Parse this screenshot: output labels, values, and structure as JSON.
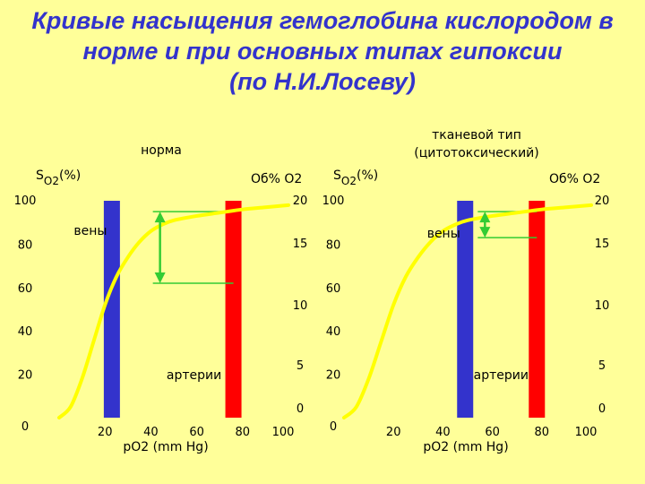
{
  "title": {
    "line1": "Кривые насыщения гемоглобина кислородом в",
    "line2": "норме и при основных типах гипоксии",
    "line3": "(по Н.И.Лосеву)"
  },
  "colors": {
    "background": "#FFFF99",
    "title": "#3333CC",
    "curve": "#FFFF00",
    "vein_bar": "#3333CC",
    "artery_bar": "#FF0000",
    "arrow": "#33CC33",
    "label_blue": "#3333CC",
    "label_red": "#FF0000"
  },
  "chart_data": [
    {
      "type": "line",
      "title": "норма",
      "ylabel_left": "S",
      "ylabel_left_sub": "O2",
      "ylabel_left_unit": "(%)",
      "ylabel_right": "Об% О2",
      "xlabel": "pO2 (mm Hg)",
      "xlim": [
        0,
        100
      ],
      "ylim": [
        0,
        100
      ],
      "x_ticks": [
        "20",
        "40",
        "60",
        "80",
        "100"
      ],
      "y_ticks_left": [
        "0",
        "20",
        "40",
        "60",
        "80",
        "100"
      ],
      "y_ticks_right": [
        "0",
        "5",
        "10",
        "15",
        "20"
      ],
      "curve": {
        "x": [
          0,
          5,
          10,
          15,
          20,
          25,
          30,
          35,
          40,
          45,
          50,
          60,
          70,
          80,
          90,
          100
        ],
        "y": [
          0,
          5,
          18,
          35,
          52,
          65,
          74,
          81,
          86,
          89,
          91,
          93,
          94.5,
          96,
          97,
          98
        ]
      },
      "vein_bar": {
        "x": 23,
        "label": "вены"
      },
      "artery_bar": {
        "x": 76,
        "label": "артерии"
      },
      "difference_arrow": {
        "x": 44,
        "y_top": 95,
        "y_bottom": 62
      },
      "reference_lines": [
        62
      ]
    },
    {
      "type": "line",
      "title": "тканевой тип (цитотоксический)",
      "title_line1": "тканевой тип",
      "title_line2": "(цитотоксический)",
      "ylabel_left": "S",
      "ylabel_left_sub": "O2",
      "ylabel_left_unit": "(%)",
      "ylabel_right": "Об% О2",
      "xlabel": "pO2 (mm Hg)",
      "xlim": [
        0,
        100
      ],
      "ylim": [
        0,
        100
      ],
      "x_ticks": [
        "20",
        "40",
        "60",
        "80",
        "100"
      ],
      "y_ticks_left": [
        "0",
        "20",
        "40",
        "60",
        "80",
        "100"
      ],
      "y_ticks_right": [
        "0",
        "5",
        "10",
        "15",
        "20"
      ],
      "curve": {
        "x": [
          0,
          5,
          10,
          15,
          20,
          25,
          30,
          35,
          40,
          45,
          50,
          60,
          70,
          80,
          90,
          100
        ],
        "y": [
          0,
          5,
          18,
          35,
          52,
          65,
          74,
          81,
          86,
          89,
          91,
          93,
          94.5,
          96,
          97,
          98
        ]
      },
      "vein_bar": {
        "x": 49,
        "label": "вены"
      },
      "artery_bar": {
        "x": 78,
        "label": "артерии"
      },
      "difference_arrow": {
        "x": 57,
        "y_top": 95,
        "y_bottom": 83
      },
      "reference_lines": [
        83
      ]
    }
  ]
}
